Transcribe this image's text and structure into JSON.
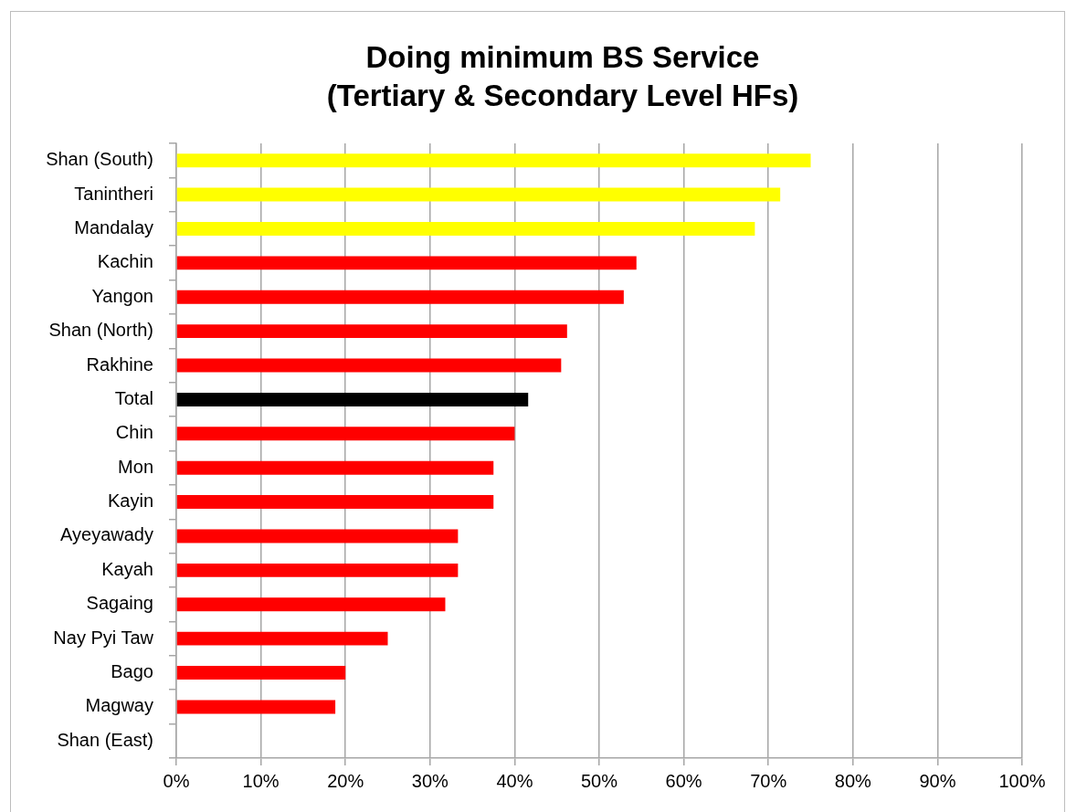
{
  "chart_data": {
    "type": "bar",
    "orientation": "horizontal",
    "title": "Doing minimum BS Service",
    "subtitle": "(Tertiary & Secondary Level HFs)",
    "categories": [
      "Shan (South)",
      "Tanintheri",
      "Mandalay",
      "Kachin",
      "Yangon",
      "Shan (North)",
      "Rakhine",
      "Total",
      "Chin",
      "Mon",
      "Kayin",
      "Ayeyawady",
      "Kayah",
      "Sagaing",
      "Nay Pyi Taw",
      "Bago",
      "Magway",
      "Shan (East)"
    ],
    "values": [
      75,
      71.4,
      68.4,
      54.4,
      52.9,
      46.2,
      45.5,
      41.6,
      40,
      37.5,
      37.5,
      33.3,
      33.3,
      31.8,
      25,
      20,
      18.8,
      0
    ],
    "colors": [
      "#ffff00",
      "#ffff00",
      "#ffff00",
      "#ff0000",
      "#ff0000",
      "#ff0000",
      "#ff0000",
      "#000000",
      "#ff0000",
      "#ff0000",
      "#ff0000",
      "#ff0000",
      "#ff0000",
      "#ff0000",
      "#ff0000",
      "#ff0000",
      "#ff0000",
      "#ff0000"
    ],
    "xlim": [
      0,
      100
    ],
    "xticks": [
      {
        "value": 0,
        "label": "0%"
      },
      {
        "value": 10,
        "label": "10%"
      },
      {
        "value": 20,
        "label": "20%"
      },
      {
        "value": 30,
        "label": "30%"
      },
      {
        "value": 40,
        "label": "40%"
      },
      {
        "value": 50,
        "label": "50%"
      },
      {
        "value": 60,
        "label": "60%"
      },
      {
        "value": 70,
        "label": "70%"
      },
      {
        "value": 80,
        "label": "80%"
      },
      {
        "value": 90,
        "label": "90%"
      },
      {
        "value": 100,
        "label": "100%"
      }
    ],
    "grid": "x"
  }
}
